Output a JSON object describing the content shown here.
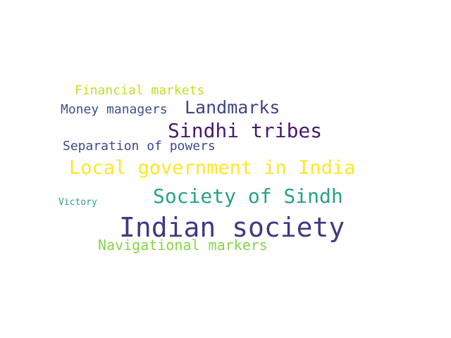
{
  "words": [
    {
      "text": "Financial markets",
      "color": "#c2df23"
    },
    {
      "text": "Money managers",
      "color": "#3b528b"
    },
    {
      "text": "Landmarks",
      "color": "#414487"
    },
    {
      "text": "Sindhi tribes",
      "color": "#481a6c"
    },
    {
      "text": "Separation of powers",
      "color": "#3e4a89"
    },
    {
      "text": "Local government in India",
      "color": "#fde725"
    },
    {
      "text": "Society of Sindh",
      "color": "#26a187"
    },
    {
      "text": "Victory",
      "color": "#2a9d8f"
    },
    {
      "text": "Indian society",
      "color": "#3e3a83"
    },
    {
      "text": "Navigational markers",
      "color": "#86d549"
    }
  ]
}
